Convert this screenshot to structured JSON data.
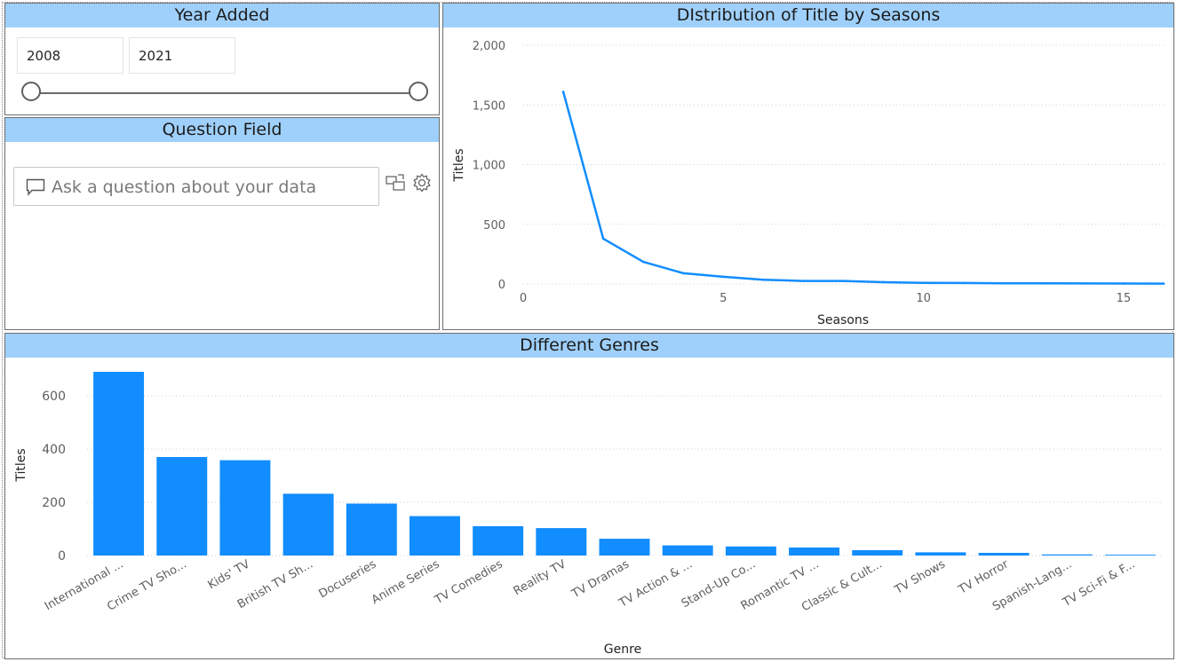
{
  "year_slicer": {
    "title": "Year Added",
    "start": "2008",
    "end": "2021"
  },
  "question": {
    "title": "Question Field",
    "placeholder": "Ask a question about your data"
  },
  "colors": {
    "header": "#9fd0fb",
    "series": "#118dff"
  },
  "chart_data": [
    {
      "type": "line",
      "title": "DIstribution of Title by Seasons",
      "xlabel": "Seasons",
      "ylabel": "Titles",
      "xlim": [
        0,
        16
      ],
      "ylim": [
        0,
        2000
      ],
      "x_ticks": [
        0,
        5,
        10,
        15
      ],
      "y_ticks": [
        0,
        500,
        1000,
        1500,
        2000
      ],
      "y_tick_labels": [
        "0",
        "500",
        "1,000",
        "1,500",
        "2,000"
      ],
      "x": [
        1,
        2,
        3,
        4,
        5,
        6,
        7,
        8,
        9,
        10,
        11,
        12,
        13,
        15,
        16
      ],
      "y": [
        1610,
        380,
        185,
        90,
        60,
        35,
        25,
        25,
        15,
        10,
        8,
        6,
        5,
        4,
        3
      ],
      "grid": true
    },
    {
      "type": "bar",
      "title": "Different Genres",
      "xlabel": "Genre",
      "ylabel": "Titles",
      "ylim": [
        0,
        700
      ],
      "y_ticks": [
        0,
        200,
        400,
        600
      ],
      "categories": [
        "International ...",
        "Crime TV Sho...",
        "Kids' TV",
        "British TV Sh...",
        "Docuseries",
        "Anime Series",
        "TV Comedies",
        "Reality TV",
        "TV Dramas",
        "TV Action & ...",
        "Stand-Up Co...",
        "Romantic TV ...",
        "Classic & Cult...",
        "TV Shows",
        "TV Horror",
        "Spanish-Lang...",
        "TV Sci-Fi & F..."
      ],
      "values": [
        690,
        370,
        358,
        232,
        195,
        148,
        110,
        103,
        63,
        38,
        34,
        30,
        20,
        12,
        10,
        4,
        3
      ],
      "grid": true
    }
  ]
}
